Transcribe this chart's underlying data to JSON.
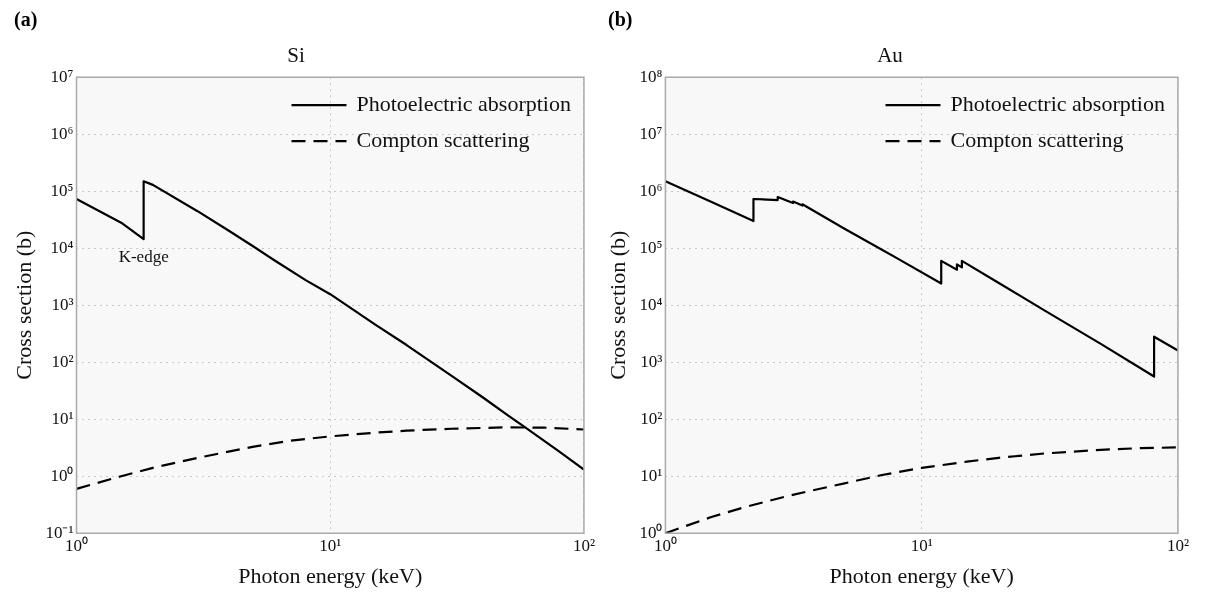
{
  "chart_data": [
    {
      "type": "line",
      "title": "Si",
      "xlabel": "Photon energy (keV)",
      "ylabel": "Cross section (b)",
      "log": "xy",
      "grid": true,
      "legend": "top right",
      "marker": "none",
      "annotations": [
        "(a)",
        {
          "text": "K-edge",
          "x": 1.84,
          "y": 14400
        }
      ],
      "xlim": [
        1,
        100
      ],
      "xticks": [
        {
          "value": 1,
          "label": "10⁰"
        },
        {
          "value": 10,
          "label": "10¹"
        },
        {
          "value": 100,
          "label": "10²"
        }
      ],
      "ylim": [
        0.1,
        10000000
      ],
      "yticks": [
        {
          "value": 0.1,
          "label": "10⁻¹"
        },
        {
          "value": 1,
          "label": "10⁰"
        },
        {
          "value": 10,
          "label": "10¹"
        },
        {
          "value": 100,
          "label": "10²"
        },
        {
          "value": 1000,
          "label": "10³"
        },
        {
          "value": 10000,
          "label": "10⁴"
        },
        {
          "value": 100000,
          "label": "10⁵"
        },
        {
          "value": 1000000,
          "label": "10⁶"
        },
        {
          "value": 10000000,
          "label": "10⁷"
        }
      ],
      "series": [
        {
          "name": "Photoelectric absorption",
          "color": "#000000",
          "line_style": "solid",
          "x": [
            1,
            1.5,
            1.839,
            1.839,
            2,
            3,
            4,
            5,
            6,
            8,
            10,
            15,
            20,
            30,
            40,
            50,
            60,
            80,
            100
          ],
          "values": [
            73000,
            28000,
            14400,
            149000,
            129000,
            44600,
            20000,
            10600,
            6200,
            2750,
            1560,
            461,
            200,
            58,
            24,
            11.8,
            6.7,
            2.7,
            1.3
          ]
        },
        {
          "name": "Compton scattering",
          "color": "#000000",
          "line_style": "dashed",
          "x": [
            1,
            1.5,
            2,
            3,
            5,
            7,
            10,
            15,
            20,
            30,
            50,
            70,
            100
          ],
          "values": [
            0.6,
            1.0,
            1.4,
            2.1,
            3.3,
            4.2,
            5.0,
            5.8,
            6.3,
            6.8,
            7.2,
            7.1,
            6.6
          ]
        }
      ]
    },
    {
      "type": "line",
      "title": "Au",
      "xlabel": "Photon energy (keV)",
      "ylabel": "Cross section (b)",
      "log": "xy",
      "grid": true,
      "legend": "top right",
      "marker": "none",
      "annotations": [
        "(b)"
      ],
      "xlim": [
        1,
        100
      ],
      "xticks": [
        {
          "value": 1,
          "label": "10⁰"
        },
        {
          "value": 10,
          "label": "10¹"
        },
        {
          "value": 100,
          "label": "10²"
        }
      ],
      "ylim": [
        1,
        100000000
      ],
      "yticks": [
        {
          "value": 1,
          "label": "10⁰"
        },
        {
          "value": 10,
          "label": "10¹"
        },
        {
          "value": 100,
          "label": "10²"
        },
        {
          "value": 1000,
          "label": "10³"
        },
        {
          "value": 10000,
          "label": "10⁴"
        },
        {
          "value": 100000,
          "label": "10⁵"
        },
        {
          "value": 1000000,
          "label": "10⁶"
        },
        {
          "value": 10000000,
          "label": "10⁷"
        },
        {
          "value": 100000000,
          "label": "10⁸"
        }
      ],
      "series": [
        {
          "name": "Photoelectric absorption",
          "color": "#000000",
          "line_style": "solid",
          "x": [
            1,
            1.5,
            2.206,
            2.206,
            2.743,
            2.743,
            3.148,
            3.148,
            3.425,
            3.425,
            5,
            8,
            11.92,
            11.92,
            13.73,
            13.73,
            14.35,
            14.35,
            20,
            30,
            50,
            80.7,
            80.7,
            100
          ],
          "values": [
            1500000,
            660000,
            300000,
            730000,
            700000,
            790000,
            620000,
            660000,
            560000,
            590000,
            220000,
            67000,
            24000,
            60000,
            42000,
            52000,
            46000,
            60000,
            24500,
            8200,
            2100,
            560,
            2800,
            1600
          ]
        },
        {
          "name": "Compton scattering",
          "color": "#000000",
          "line_style": "dashed",
          "x": [
            1,
            1.5,
            2,
            3,
            5,
            7,
            10,
            15,
            20,
            30,
            50,
            70,
            100
          ],
          "values": [
            1.0,
            1.9,
            2.8,
            4.5,
            7.5,
            10.5,
            14,
            18,
            21,
            25,
            29,
            31,
            32
          ]
        }
      ]
    }
  ]
}
